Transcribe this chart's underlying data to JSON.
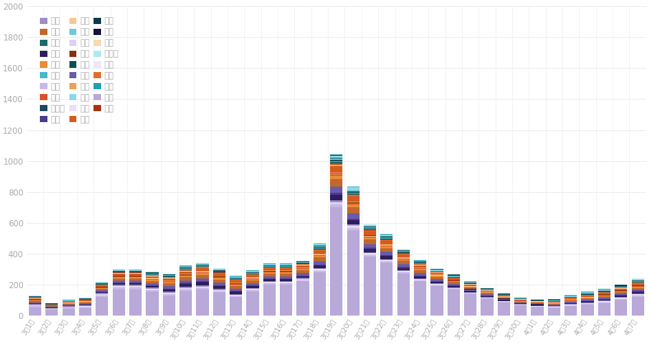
{
  "dates": [
    "3月1日",
    "3月2日",
    "3月3日",
    "3月4日",
    "3月5日",
    "3月6日",
    "3月7日",
    "3月8日",
    "3月9日",
    "3月10日",
    "3月11日",
    "3月12日",
    "3月13日",
    "3月14日",
    "3月15日",
    "3月16日",
    "3月17日",
    "3月18日",
    "3月19日",
    "3月20日",
    "3月21日",
    "3月22日",
    "3月23日",
    "3月24日",
    "3月25日",
    "3月26日",
    "3月27日",
    "3月28日",
    "3月29日",
    "3月30日",
    "4月1日",
    "4月2日",
    "4月3日",
    "4月4日",
    "4月5日",
    "4月6日",
    "4月7日"
  ],
  "provinces": [
    "重庆",
    "山东",
    "山西",
    "天津",
    "湖南",
    "河北",
    "浙江",
    "福建",
    "广东",
    "青海",
    "江苏",
    "河南",
    "辽宁",
    "海南",
    "广西",
    "新疆",
    "北京",
    "贵州",
    "陕西",
    "兵团",
    "安徽",
    "江西",
    "黑龙江",
    "四川",
    "云南",
    "湖北",
    "宁夏",
    "内蒙古",
    "甘肃"
  ],
  "colors": {
    "重庆": "#b8a9d9",
    "山东": "#c9b8e8",
    "山西": "#ddd0f2",
    "天津": "#e8dff8",
    "湖南": "#ede8f8",
    "河北": "#9b8ec4",
    "浙江": "#2d1f5e",
    "福建": "#4a3b8c",
    "广东": "#6b5aab",
    "青海": "#1a0f3d",
    "江苏": "#c0692a",
    "河南": "#e88c3a",
    "辽宁": "#d4522a",
    "海南": "#f5c898",
    "广西": "#8b3010",
    "新疆": "#f0a050",
    "北京": "#d45a20",
    "贵州": "#f8d8b0",
    "陕西": "#e07028",
    "兵团": "#a83010",
    "安徽": "#1a6b6b",
    "江西": "#4ab8c8",
    "黑龙江": "#1a4a5a",
    "四川": "#70c8d8",
    "云南": "#0d5050",
    "湖北": "#90d8e8",
    "宁夏": "#0d3a4a",
    "内蒙古": "#b0e8f0",
    "甘肃": "#20a0b0"
  },
  "data": {
    "重庆": [
      55,
      38,
      45,
      50,
      120,
      170,
      170,
      155,
      130,
      160,
      170,
      150,
      120,
      155,
      200,
      200,
      220,
      280,
      700,
      550,
      380,
      340,
      270,
      220,
      190,
      170,
      140,
      110,
      85,
      65,
      55,
      50,
      60,
      70,
      80,
      100,
      120
    ],
    "山东": [
      5,
      3,
      4,
      5,
      8,
      10,
      10,
      8,
      7,
      8,
      8,
      6,
      5,
      8,
      8,
      8,
      8,
      10,
      18,
      15,
      10,
      9,
      8,
      7,
      5,
      4,
      3,
      3,
      3,
      2,
      2,
      3,
      4,
      5,
      6,
      7,
      8
    ],
    "山西": [
      3,
      2,
      3,
      3,
      4,
      5,
      5,
      4,
      4,
      5,
      5,
      4,
      4,
      4,
      4,
      4,
      4,
      5,
      8,
      7,
      6,
      5,
      5,
      4,
      3,
      3,
      2,
      2,
      2,
      2,
      2,
      2,
      3,
      3,
      3,
      4,
      4
    ],
    "天津": [
      2,
      1,
      2,
      2,
      3,
      3,
      3,
      3,
      3,
      3,
      3,
      3,
      2,
      2,
      2,
      2,
      2,
      3,
      4,
      4,
      3,
      3,
      2,
      2,
      2,
      1,
      1,
      1,
      1,
      1,
      1,
      1,
      2,
      2,
      2,
      2,
      3
    ],
    "湖南": [
      2,
      1,
      1,
      2,
      2,
      2,
      2,
      2,
      2,
      2,
      2,
      2,
      2,
      2,
      2,
      2,
      2,
      2,
      3,
      3,
      3,
      2,
      2,
      2,
      2,
      1,
      1,
      1,
      1,
      1,
      1,
      1,
      1,
      2,
      2,
      2,
      2
    ],
    "河北": [
      8,
      5,
      6,
      6,
      8,
      10,
      8,
      8,
      8,
      8,
      8,
      7,
      6,
      7,
      8,
      8,
      8,
      8,
      12,
      10,
      8,
      7,
      6,
      6,
      5,
      4,
      4,
      3,
      3,
      3,
      3,
      3,
      4,
      4,
      4,
      5,
      6
    ],
    "浙江": [
      3,
      2,
      3,
      3,
      5,
      8,
      10,
      12,
      15,
      18,
      20,
      18,
      15,
      12,
      10,
      10,
      10,
      15,
      35,
      28,
      20,
      18,
      15,
      12,
      10,
      8,
      7,
      6,
      5,
      4,
      3,
      4,
      5,
      6,
      7,
      8,
      10
    ],
    "福建": [
      2,
      1,
      2,
      2,
      4,
      5,
      5,
      5,
      6,
      7,
      7,
      6,
      5,
      5,
      5,
      5,
      5,
      7,
      12,
      10,
      8,
      7,
      6,
      5,
      4,
      4,
      3,
      3,
      2,
      2,
      2,
      2,
      3,
      3,
      4,
      4,
      5
    ],
    "广东": [
      5,
      3,
      4,
      5,
      8,
      12,
      12,
      12,
      14,
      16,
      18,
      16,
      14,
      14,
      14,
      14,
      14,
      20,
      40,
      32,
      24,
      20,
      18,
      15,
      12,
      10,
      9,
      7,
      6,
      5,
      4,
      5,
      6,
      7,
      8,
      9,
      10
    ],
    "青海": [
      1,
      0,
      0,
      0,
      0,
      0,
      0,
      0,
      0,
      0,
      0,
      0,
      0,
      0,
      0,
      0,
      0,
      0,
      2,
      2,
      1,
      1,
      1,
      1,
      1,
      1,
      1,
      1,
      1,
      1,
      1,
      1,
      1,
      1,
      1,
      1,
      1
    ],
    "江苏": [
      10,
      5,
      6,
      7,
      10,
      15,
      15,
      15,
      18,
      20,
      22,
      20,
      18,
      18,
      18,
      18,
      18,
      25,
      50,
      40,
      30,
      25,
      22,
      18,
      15,
      12,
      10,
      8,
      7,
      5,
      5,
      5,
      6,
      7,
      8,
      9,
      10
    ],
    "河南": [
      5,
      3,
      4,
      4,
      6,
      8,
      8,
      8,
      9,
      10,
      12,
      10,
      9,
      9,
      9,
      9,
      9,
      12,
      22,
      18,
      14,
      12,
      10,
      8,
      7,
      6,
      5,
      4,
      4,
      3,
      3,
      3,
      4,
      4,
      5,
      5,
      6
    ],
    "辽宁": [
      2,
      1,
      2,
      2,
      3,
      4,
      4,
      4,
      4,
      5,
      5,
      5,
      4,
      4,
      4,
      4,
      4,
      5,
      8,
      7,
      5,
      5,
      4,
      4,
      3,
      3,
      2,
      2,
      2,
      2,
      2,
      2,
      2,
      3,
      3,
      3,
      4
    ],
    "海南": [
      1,
      1,
      1,
      1,
      2,
      2,
      2,
      2,
      2,
      2,
      2,
      2,
      2,
      2,
      2,
      2,
      2,
      2,
      3,
      3,
      2,
      2,
      2,
      2,
      2,
      1,
      1,
      1,
      1,
      1,
      1,
      1,
      1,
      1,
      2,
      2,
      2
    ],
    "广西": [
      2,
      1,
      1,
      1,
      2,
      2,
      2,
      2,
      2,
      2,
      2,
      2,
      2,
      2,
      2,
      2,
      2,
      3,
      5,
      4,
      3,
      3,
      2,
      2,
      2,
      2,
      1,
      1,
      1,
      1,
      1,
      1,
      2,
      2,
      2,
      2,
      3
    ],
    "新疆": [
      2,
      1,
      1,
      2,
      2,
      3,
      3,
      3,
      3,
      4,
      4,
      3,
      3,
      3,
      3,
      3,
      3,
      4,
      7,
      5,
      4,
      4,
      3,
      3,
      2,
      2,
      2,
      1,
      1,
      1,
      1,
      1,
      2,
      2,
      2,
      3,
      3
    ],
    "北京": [
      5,
      3,
      4,
      5,
      8,
      12,
      12,
      12,
      14,
      16,
      18,
      16,
      14,
      14,
      14,
      14,
      14,
      20,
      40,
      32,
      24,
      20,
      18,
      15,
      12,
      10,
      9,
      7,
      6,
      5,
      4,
      5,
      6,
      7,
      8,
      9,
      10
    ],
    "贵州": [
      1,
      1,
      1,
      1,
      1,
      2,
      2,
      2,
      2,
      2,
      2,
      2,
      2,
      2,
      2,
      2,
      2,
      2,
      3,
      3,
      2,
      2,
      2,
      2,
      1,
      1,
      1,
      1,
      1,
      1,
      1,
      1,
      1,
      1,
      1,
      2,
      2
    ],
    "陕西": [
      2,
      1,
      2,
      2,
      3,
      4,
      4,
      4,
      4,
      5,
      5,
      5,
      4,
      4,
      4,
      4,
      4,
      5,
      8,
      7,
      5,
      5,
      4,
      4,
      3,
      3,
      2,
      2,
      2,
      2,
      2,
      2,
      2,
      3,
      3,
      3,
      4
    ],
    "兵团": [
      1,
      0,
      1,
      1,
      1,
      1,
      1,
      1,
      1,
      1,
      1,
      1,
      1,
      1,
      1,
      1,
      1,
      1,
      2,
      2,
      1,
      1,
      1,
      1,
      1,
      1,
      1,
      1,
      1,
      1,
      1,
      1,
      1,
      1,
      1,
      1,
      1
    ],
    "安徽": [
      2,
      1,
      2,
      2,
      3,
      4,
      4,
      4,
      4,
      5,
      5,
      5,
      4,
      4,
      4,
      4,
      4,
      6,
      10,
      8,
      6,
      5,
      5,
      4,
      3,
      3,
      2,
      2,
      2,
      2,
      2,
      2,
      2,
      3,
      3,
      3,
      4
    ],
    "江西": [
      2,
      1,
      2,
      2,
      2,
      3,
      3,
      3,
      3,
      3,
      3,
      3,
      3,
      3,
      3,
      3,
      3,
      4,
      7,
      5,
      4,
      4,
      3,
      3,
      2,
      2,
      2,
      1,
      1,
      1,
      1,
      1,
      2,
      2,
      2,
      2,
      3
    ],
    "黑龙江": [
      2,
      1,
      2,
      2,
      3,
      4,
      4,
      4,
      4,
      5,
      5,
      5,
      4,
      4,
      4,
      4,
      4,
      5,
      8,
      7,
      5,
      5,
      4,
      4,
      3,
      3,
      2,
      2,
      2,
      2,
      2,
      2,
      2,
      3,
      3,
      3,
      4
    ],
    "四川": [
      2,
      1,
      2,
      2,
      3,
      4,
      4,
      4,
      4,
      5,
      5,
      5,
      4,
      4,
      4,
      4,
      4,
      6,
      10,
      8,
      6,
      5,
      5,
      4,
      3,
      3,
      2,
      2,
      2,
      2,
      2,
      2,
      2,
      3,
      3,
      3,
      4
    ],
    "云南": [
      1,
      1,
      1,
      1,
      2,
      2,
      2,
      2,
      2,
      2,
      2,
      2,
      2,
      2,
      2,
      2,
      2,
      3,
      5,
      4,
      3,
      3,
      2,
      2,
      2,
      2,
      1,
      1,
      1,
      1,
      1,
      1,
      1,
      2,
      2,
      2,
      2
    ],
    "湖北": [
      2,
      1,
      2,
      2,
      3,
      4,
      4,
      4,
      4,
      5,
      5,
      5,
      4,
      4,
      4,
      4,
      4,
      6,
      12,
      10,
      8,
      7,
      6,
      5,
      4,
      4,
      3,
      2,
      2,
      2,
      2,
      2,
      2,
      3,
      3,
      3,
      4
    ],
    "宁夏": [
      0,
      0,
      0,
      0,
      0,
      0,
      0,
      0,
      0,
      0,
      0,
      0,
      0,
      0,
      0,
      0,
      0,
      0,
      2,
      1,
      1,
      1,
      1,
      1,
      1,
      1,
      1,
      1,
      1,
      1,
      1,
      1,
      1,
      1,
      1,
      1,
      1
    ],
    "内蒙古": [
      1,
      0,
      1,
      1,
      1,
      1,
      1,
      1,
      1,
      1,
      1,
      1,
      1,
      1,
      1,
      1,
      1,
      2,
      3,
      3,
      2,
      2,
      2,
      1,
      1,
      1,
      1,
      1,
      1,
      1,
      1,
      1,
      1,
      1,
      1,
      1,
      2
    ],
    "甘肃": [
      1,
      1,
      1,
      1,
      2,
      2,
      2,
      2,
      2,
      2,
      2,
      2,
      2,
      2,
      2,
      2,
      2,
      3,
      5,
      4,
      3,
      3,
      2,
      2,
      2,
      2,
      1,
      1,
      1,
      1,
      1,
      1,
      2,
      2,
      2,
      2,
      2
    ]
  },
  "legend_col1": [
    "河北",
    "浙江",
    "山东",
    "福建",
    "山西",
    "广东",
    "天津",
    "青海",
    "湖南",
    "重庆"
  ],
  "legend_col2": [
    "江苏",
    "河南",
    "辽宁",
    "海南",
    "广西",
    "新疆",
    "北京",
    "贵州",
    "陕西",
    "兵团"
  ],
  "legend_col3": [
    "安徽",
    "江西",
    "黑龙江",
    "四川",
    "云南",
    "湖北",
    "宁夏",
    "内蒙古",
    "甘肃"
  ],
  "ylim": [
    0,
    2000
  ],
  "yticks": [
    0,
    200,
    400,
    600,
    800,
    1000,
    1200,
    1400,
    1600,
    1800,
    2000
  ],
  "bg_color": "#ffffff",
  "bar_width": 0.75,
  "tick_color": "#aaaaaa",
  "grid_color": "#e8e8e8"
}
